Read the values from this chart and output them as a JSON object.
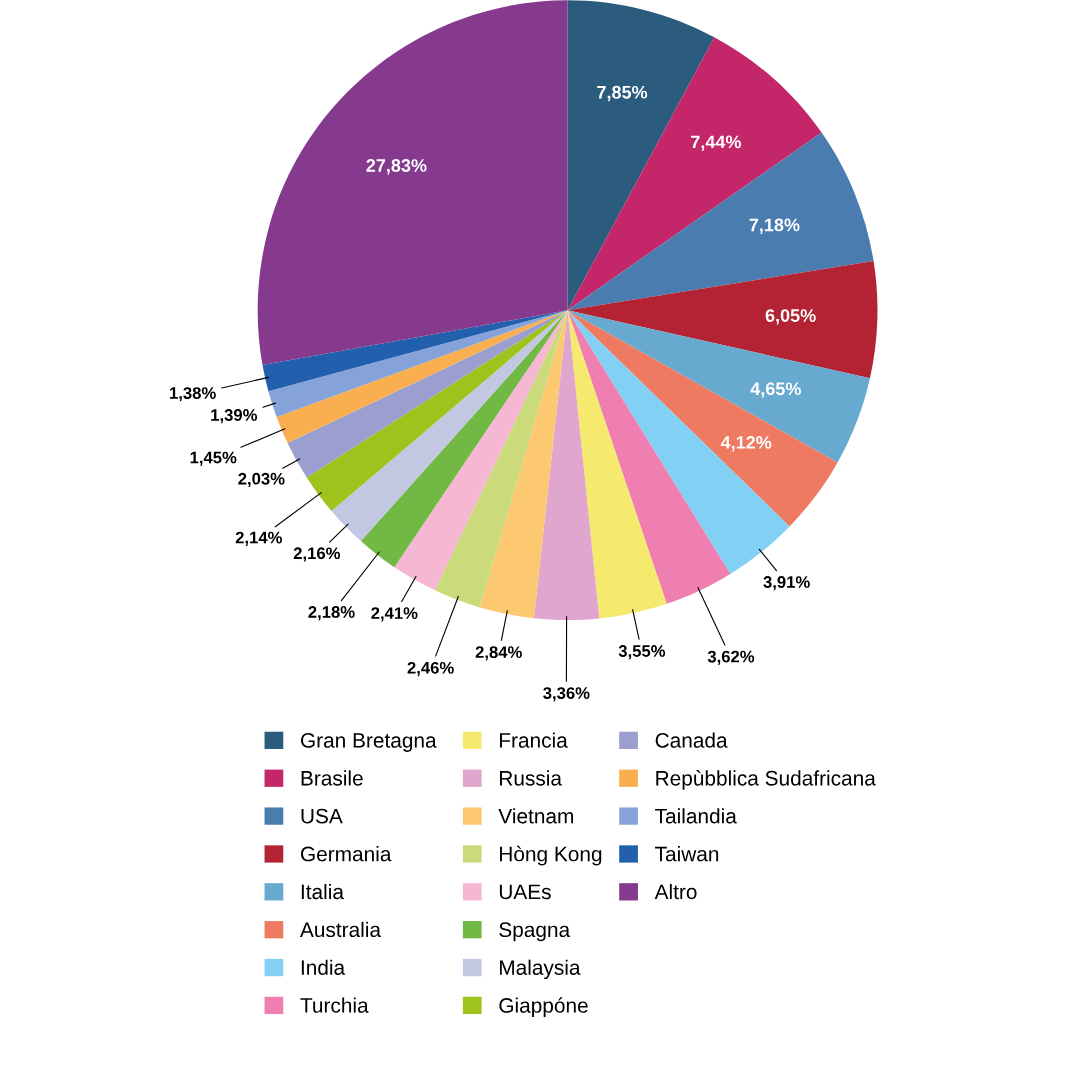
{
  "chart_data": {
    "type": "pie",
    "legend": "bottom",
    "categories": [
      "Gran Bretagna",
      "Brasile",
      "USA",
      "Germania",
      "Italia",
      "Australia",
      "India",
      "Turchia",
      "Francia",
      "Russia",
      "Vietnam",
      "Hòng Kong",
      "UAEs",
      "Spagna",
      "Malaysia",
      "Giappóne",
      "Canada",
      "Repùbblica Sudafricana",
      "Tailandia",
      "Taiwan",
      "Altro"
    ],
    "values": [
      7.85,
      7.44,
      7.18,
      6.05,
      4.65,
      4.12,
      3.91,
      3.62,
      3.55,
      3.36,
      2.84,
      2.46,
      2.41,
      2.18,
      2.16,
      2.14,
      2.03,
      1.45,
      1.39,
      1.38,
      27.83
    ],
    "value_labels": [
      "7,85%",
      "7,44%",
      "7,18%",
      "6,05%",
      "4,65%",
      "4,12%",
      "3,91%",
      "3,62%",
      "3,55%",
      "3,36%",
      "2,84%",
      "2,46%",
      "2,41%",
      "2,18%",
      "2,16%",
      "2,14%",
      "2,03%",
      "1,45%",
      "1,39%",
      "1,38%",
      "27,83%"
    ],
    "colors": [
      "#2b5c7e",
      "#c4266a",
      "#4a7cb0",
      "#b42333",
      "#68a9cf",
      "#ef7a62",
      "#82d0f4",
      "#ee7fb0",
      "#f5e96e",
      "#e0a6cd",
      "#fcc870",
      "#cbdb7c",
      "#f5b7d1",
      "#72b844",
      "#c3c8e2",
      "#a0c21d",
      "#9a9fd0",
      "#f9ae4f",
      "#85a3d8",
      "#2260ad",
      "#853a8e"
    ]
  }
}
